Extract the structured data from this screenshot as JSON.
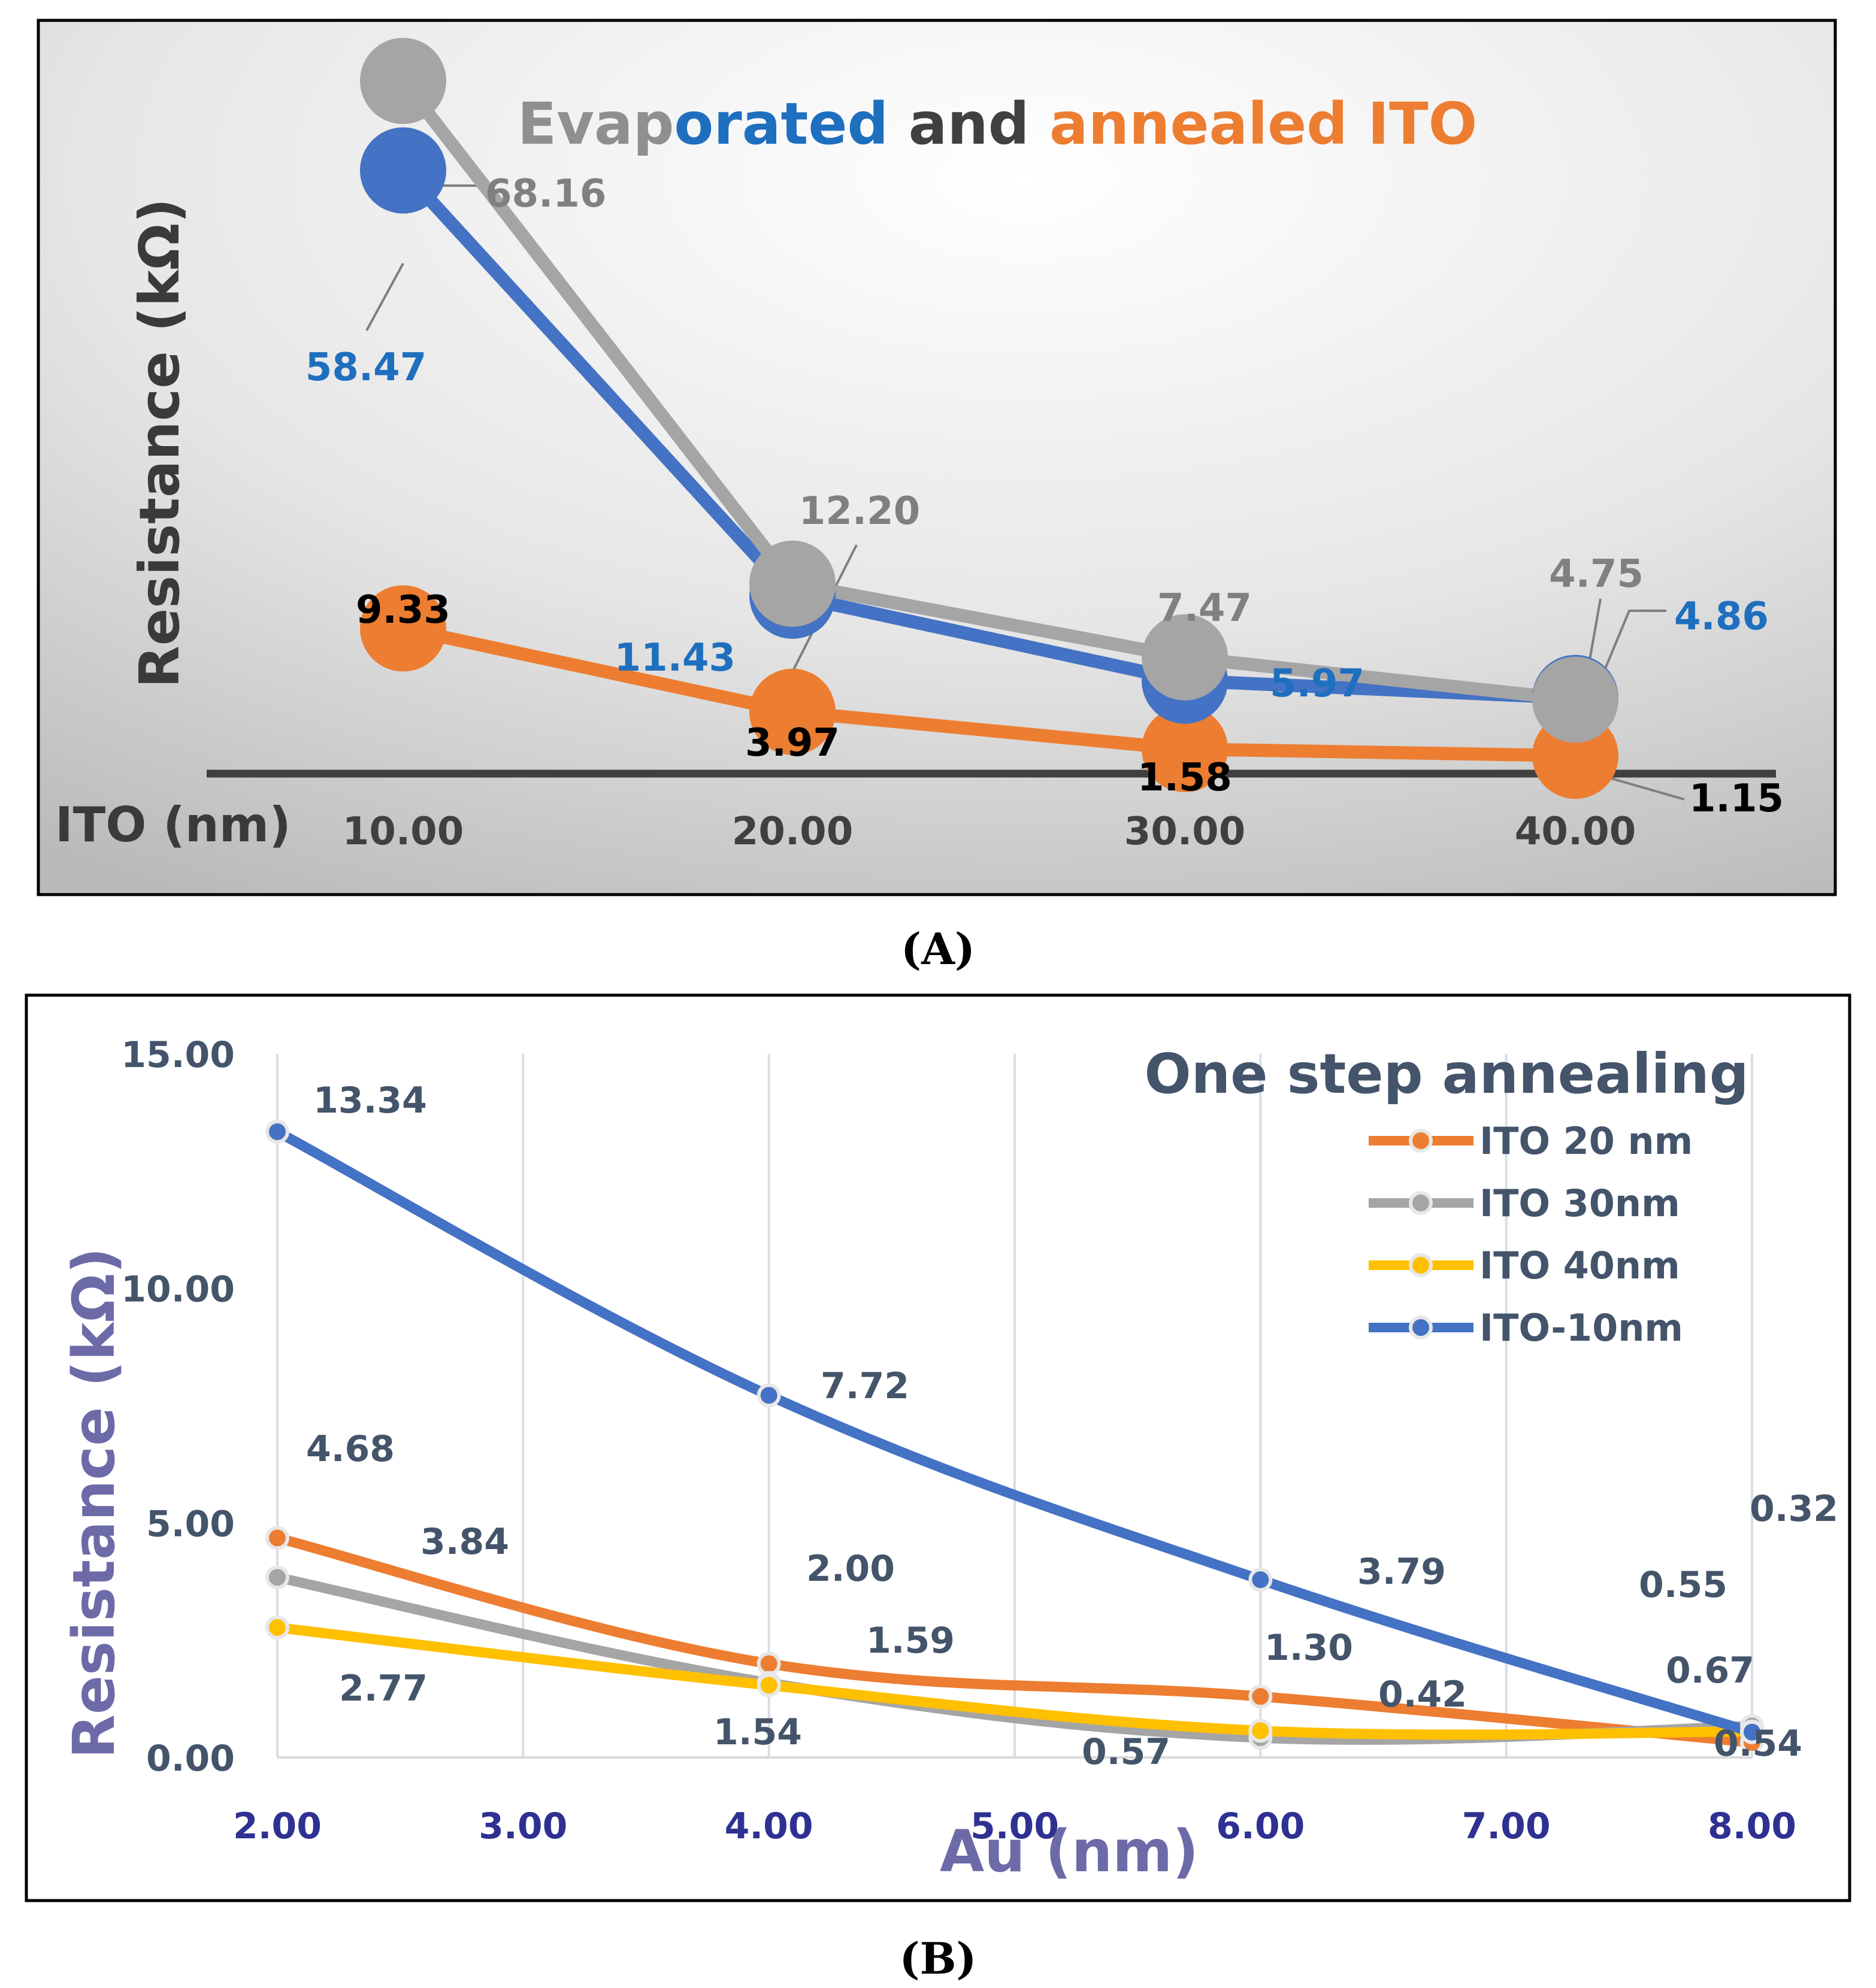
{
  "chart_data": [
    {
      "id": "A",
      "type": "line",
      "panel_label": "(A)",
      "title": "Evaporated and annealed ITO",
      "title_segments": [
        {
          "text": "Evap",
          "color": "#8f8f8f"
        },
        {
          "text": "orated",
          "color": "#1f6fbf"
        },
        {
          "text": " and ",
          "color": "#404040"
        },
        {
          "text": "annealed ITO",
          "color": "#ed7d31"
        }
      ],
      "xlabel": "ITO (nm)",
      "ylabel": "Resistance (kΩ)",
      "categories": [
        "10.00",
        "20.00",
        "30.00",
        "40.00"
      ],
      "series": [
        {
          "name": "annealed",
          "color": "#ed7d31",
          "label_color": "#000000",
          "values": [
            9.33,
            3.97,
            1.58,
            1.15
          ],
          "labels": [
            "9.33",
            "3.97",
            "1.58",
            "1.15"
          ]
        },
        {
          "name": "evaporated",
          "color": "#4472c4",
          "label_color": "#1f6fbf",
          "values": [
            58.47,
            11.43,
            5.97,
            4.86
          ],
          "labels": [
            "58.47",
            "11.43",
            "5.97",
            "4.86"
          ]
        },
        {
          "name": "evaporated-2",
          "color": "#a5a5a5",
          "label_color": "#808080",
          "values": [
            68.16,
            12.2,
            7.47,
            4.75
          ],
          "labels": [
            "68.16",
            "12.20",
            "7.47",
            "4.75"
          ]
        }
      ]
    },
    {
      "id": "B",
      "type": "line",
      "panel_label": "(B)",
      "title": "One step annealing",
      "xlabel": "Au (nm)",
      "ylabel": "Resistance (kΩ)",
      "x_ticks": [
        "2.00",
        "3.00",
        "4.00",
        "5.00",
        "6.00",
        "7.00",
        "8.00"
      ],
      "y_ticks": [
        "0.00",
        "5.00",
        "10.00",
        "15.00"
      ],
      "xlim": [
        2,
        8
      ],
      "ylim": [
        0,
        15
      ],
      "grid": true,
      "legend_position": "top-right",
      "x": [
        2,
        4,
        6,
        8
      ],
      "series": [
        {
          "name": "ITO 20 nm",
          "color": "#ed7d31",
          "values": [
            4.68,
            2.0,
            1.3,
            0.32
          ],
          "labels": [
            "4.68",
            "2.00",
            "1.30",
            "0.32"
          ]
        },
        {
          "name": "ITO 30nm",
          "color": "#a5a5a5",
          "values": [
            3.84,
            1.59,
            0.42,
            0.67
          ],
          "labels": [
            "3.84",
            "1.59",
            "0.42",
            "0.67"
          ]
        },
        {
          "name": "ITO 40nm",
          "color": "#ffc000",
          "values": [
            2.77,
            1.54,
            0.57,
            0.55
          ],
          "labels": [
            "2.77",
            "1.54",
            "0.57",
            "0.55"
          ]
        },
        {
          "name": "ITO-10nm",
          "color": "#4472c4",
          "values": [
            13.34,
            7.72,
            3.79,
            0.54
          ],
          "labels": [
            "13.34",
            "7.72",
            "3.79",
            "0.54"
          ]
        }
      ]
    }
  ]
}
